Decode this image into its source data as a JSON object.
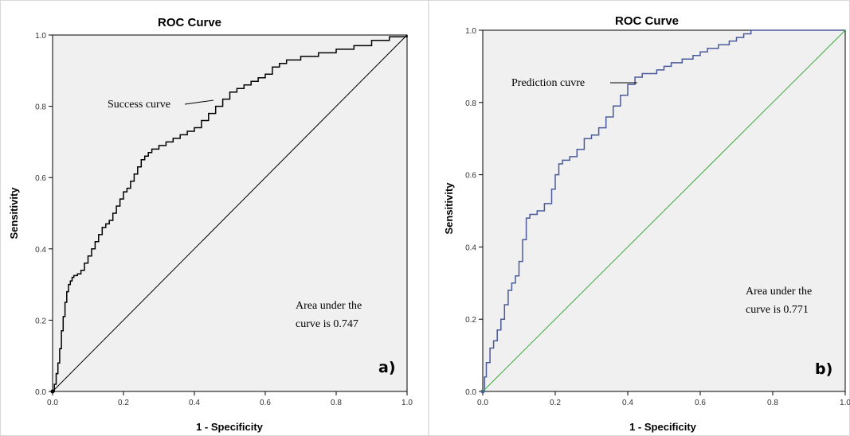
{
  "chart_data": [
    {
      "type": "line",
      "title": "ROC Curve",
      "xlabel": "1 - Specificity",
      "ylabel": "Sensitivity",
      "xlim": [
        0,
        1
      ],
      "ylim": [
        0,
        1
      ],
      "xticks": [
        "0.0",
        "0.2",
        "0.4",
        "0.6",
        "0.8",
        "1.0"
      ],
      "yticks": [
        "0.0",
        "0.2",
        "0.4",
        "0.6",
        "0.8",
        "1.0"
      ],
      "grid": false,
      "panel_label": "a)",
      "annotations": {
        "curve_label": "Success curve",
        "auc_line1": "Area under the",
        "auc_line2": "curve is 0.747"
      },
      "curve_color": "#000000",
      "reference_color": "#000000",
      "series": [
        {
          "kind": "roc",
          "x": [
            0.0,
            0.005,
            0.01,
            0.015,
            0.02,
            0.025,
            0.03,
            0.035,
            0.04,
            0.045,
            0.05,
            0.055,
            0.06,
            0.07,
            0.08,
            0.09,
            0.1,
            0.11,
            0.12,
            0.13,
            0.14,
            0.15,
            0.16,
            0.17,
            0.18,
            0.19,
            0.2,
            0.21,
            0.22,
            0.23,
            0.24,
            0.25,
            0.26,
            0.27,
            0.28,
            0.3,
            0.32,
            0.34,
            0.36,
            0.38,
            0.4,
            0.42,
            0.44,
            0.46,
            0.48,
            0.5,
            0.52,
            0.54,
            0.56,
            0.58,
            0.6,
            0.62,
            0.64,
            0.66,
            0.7,
            0.75,
            0.8,
            0.85,
            0.9,
            0.95,
            1.0
          ],
          "y": [
            0.0,
            0.02,
            0.05,
            0.08,
            0.12,
            0.17,
            0.21,
            0.25,
            0.28,
            0.3,
            0.31,
            0.32,
            0.325,
            0.33,
            0.34,
            0.36,
            0.38,
            0.4,
            0.42,
            0.44,
            0.46,
            0.47,
            0.48,
            0.5,
            0.52,
            0.54,
            0.56,
            0.57,
            0.59,
            0.61,
            0.63,
            0.65,
            0.66,
            0.67,
            0.68,
            0.69,
            0.7,
            0.71,
            0.72,
            0.73,
            0.74,
            0.76,
            0.78,
            0.8,
            0.82,
            0.84,
            0.85,
            0.86,
            0.87,
            0.88,
            0.89,
            0.91,
            0.92,
            0.93,
            0.94,
            0.95,
            0.96,
            0.97,
            0.985,
            0.995,
            1.0
          ]
        },
        {
          "kind": "reference",
          "x": [
            0,
            1
          ],
          "y": [
            0,
            1
          ]
        }
      ]
    },
    {
      "type": "line",
      "title": "ROC Curve",
      "xlabel": "1 - Specificity",
      "ylabel": "Sensitivity",
      "xlim": [
        0,
        1
      ],
      "ylim": [
        0,
        1
      ],
      "xticks": [
        "0.0",
        "0.2",
        "0.4",
        "0.6",
        "0.8",
        "1.0"
      ],
      "yticks": [
        "0.0",
        "0.2",
        "0.4",
        "0.6",
        "0.8",
        "1.0"
      ],
      "grid": false,
      "panel_label": "b)",
      "annotations": {
        "curve_label": "Prediction cuvre",
        "auc_line1": "Area under the",
        "auc_line2": "curve is 0.771"
      },
      "curve_color": "#4a5a9a",
      "reference_color": "#3aaa3a",
      "series": [
        {
          "kind": "roc",
          "x": [
            0.0,
            0.005,
            0.01,
            0.02,
            0.03,
            0.04,
            0.05,
            0.06,
            0.07,
            0.08,
            0.09,
            0.1,
            0.11,
            0.12,
            0.13,
            0.14,
            0.15,
            0.17,
            0.19,
            0.2,
            0.21,
            0.22,
            0.24,
            0.26,
            0.28,
            0.3,
            0.32,
            0.34,
            0.36,
            0.38,
            0.4,
            0.42,
            0.44,
            0.46,
            0.48,
            0.5,
            0.52,
            0.55,
            0.58,
            0.6,
            0.62,
            0.65,
            0.68,
            0.7,
            0.72,
            0.74,
            1.0
          ],
          "y": [
            0.0,
            0.04,
            0.08,
            0.12,
            0.14,
            0.17,
            0.2,
            0.24,
            0.28,
            0.3,
            0.32,
            0.36,
            0.42,
            0.48,
            0.49,
            0.49,
            0.5,
            0.52,
            0.56,
            0.6,
            0.63,
            0.64,
            0.65,
            0.67,
            0.7,
            0.71,
            0.73,
            0.76,
            0.79,
            0.82,
            0.85,
            0.87,
            0.88,
            0.88,
            0.89,
            0.9,
            0.91,
            0.92,
            0.93,
            0.94,
            0.95,
            0.96,
            0.97,
            0.98,
            0.99,
            1.0,
            1.0
          ]
        },
        {
          "kind": "reference",
          "x": [
            0,
            1
          ],
          "y": [
            0,
            1
          ]
        }
      ]
    }
  ]
}
